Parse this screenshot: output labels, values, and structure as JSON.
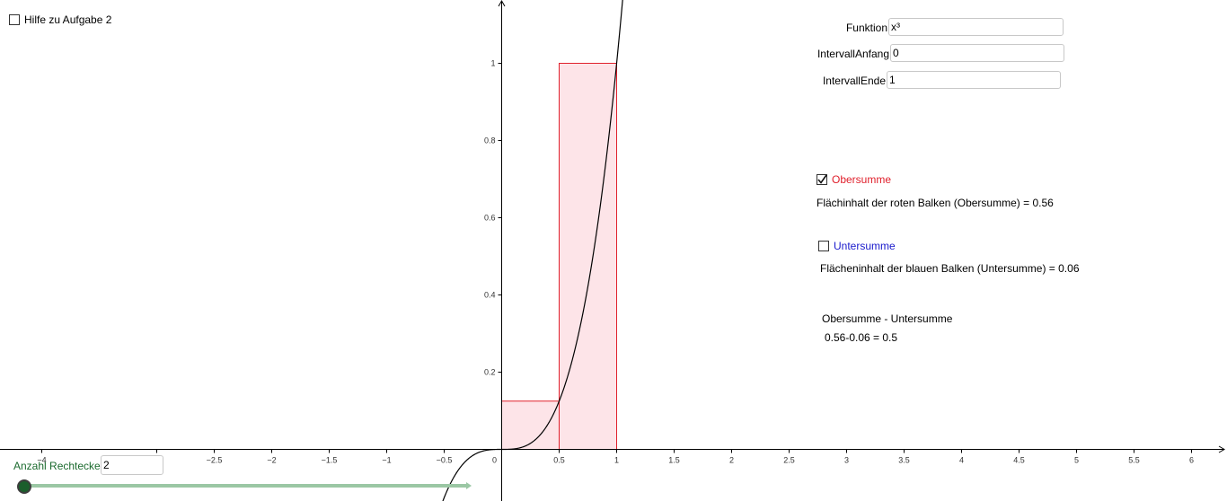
{
  "chart_data": {
    "type": "function-plot",
    "function": "x³",
    "x_ticks": [
      -4,
      -3,
      -2.5,
      -2,
      -1.5,
      -1,
      -0.5,
      0,
      0.5,
      1,
      1.5,
      2,
      2.5,
      3,
      3.5,
      4,
      4.5,
      5,
      5.5,
      6
    ],
    "x_tick_labels": [
      "−4",
      "−3",
      "−2.5",
      "−2",
      "−1.5",
      "−1",
      "−0.5",
      "0",
      "0.5",
      "1",
      "1.5",
      "2",
      "2.5",
      "3",
      "3.5",
      "4",
      "4.5",
      "5",
      "5.5",
      "6"
    ],
    "y_ticks": [
      0.2,
      0.4,
      0.6,
      0.8,
      1
    ],
    "y_tick_labels": [
      "0.2",
      "0.4",
      "0.6",
      "0.8",
      "1"
    ],
    "xlim": [
      -4.35,
      6.28
    ],
    "ylim": [
      -0.13,
      1.16
    ],
    "upper_rectangles": [
      {
        "x0": 0,
        "x1": 0.5,
        "height": 0.125
      },
      {
        "x0": 0.5,
        "x1": 1,
        "height": 1
      }
    ],
    "colors": {
      "rect_stroke": "#e0202c",
      "rect_fill": "#fde4e8",
      "curve": "#000000",
      "axis": "#000000"
    }
  },
  "help_checkbox": {
    "label": "Hilfe zu Aufgabe 2",
    "checked": false
  },
  "inputs": {
    "funktion": {
      "label": "Funktion",
      "value": "x³"
    },
    "intervall_anfang": {
      "label": "IntervallAnfang",
      "value": "0"
    },
    "intervall_ende": {
      "label": "IntervallEnde",
      "value": "1"
    }
  },
  "obersumme": {
    "label": "Obersumme",
    "checked": true,
    "color": "#e0202c",
    "area_text": "Flächinhalt der roten Balken (Obersumme) = 0.56"
  },
  "untersumme": {
    "label": "Untersumme",
    "checked": false,
    "color": "#1a1acc",
    "area_text": "Flächeninhalt der blauen Balken (Untersumme) = 0.06"
  },
  "difference": {
    "title": "Obersumme - Untersumme",
    "value": "0.56-0.06 = 0.5"
  },
  "slider": {
    "label": "Anzahl Rechtecke",
    "value": "2",
    "color": "#1b6a2e",
    "track_color": "#9bc7a4"
  }
}
